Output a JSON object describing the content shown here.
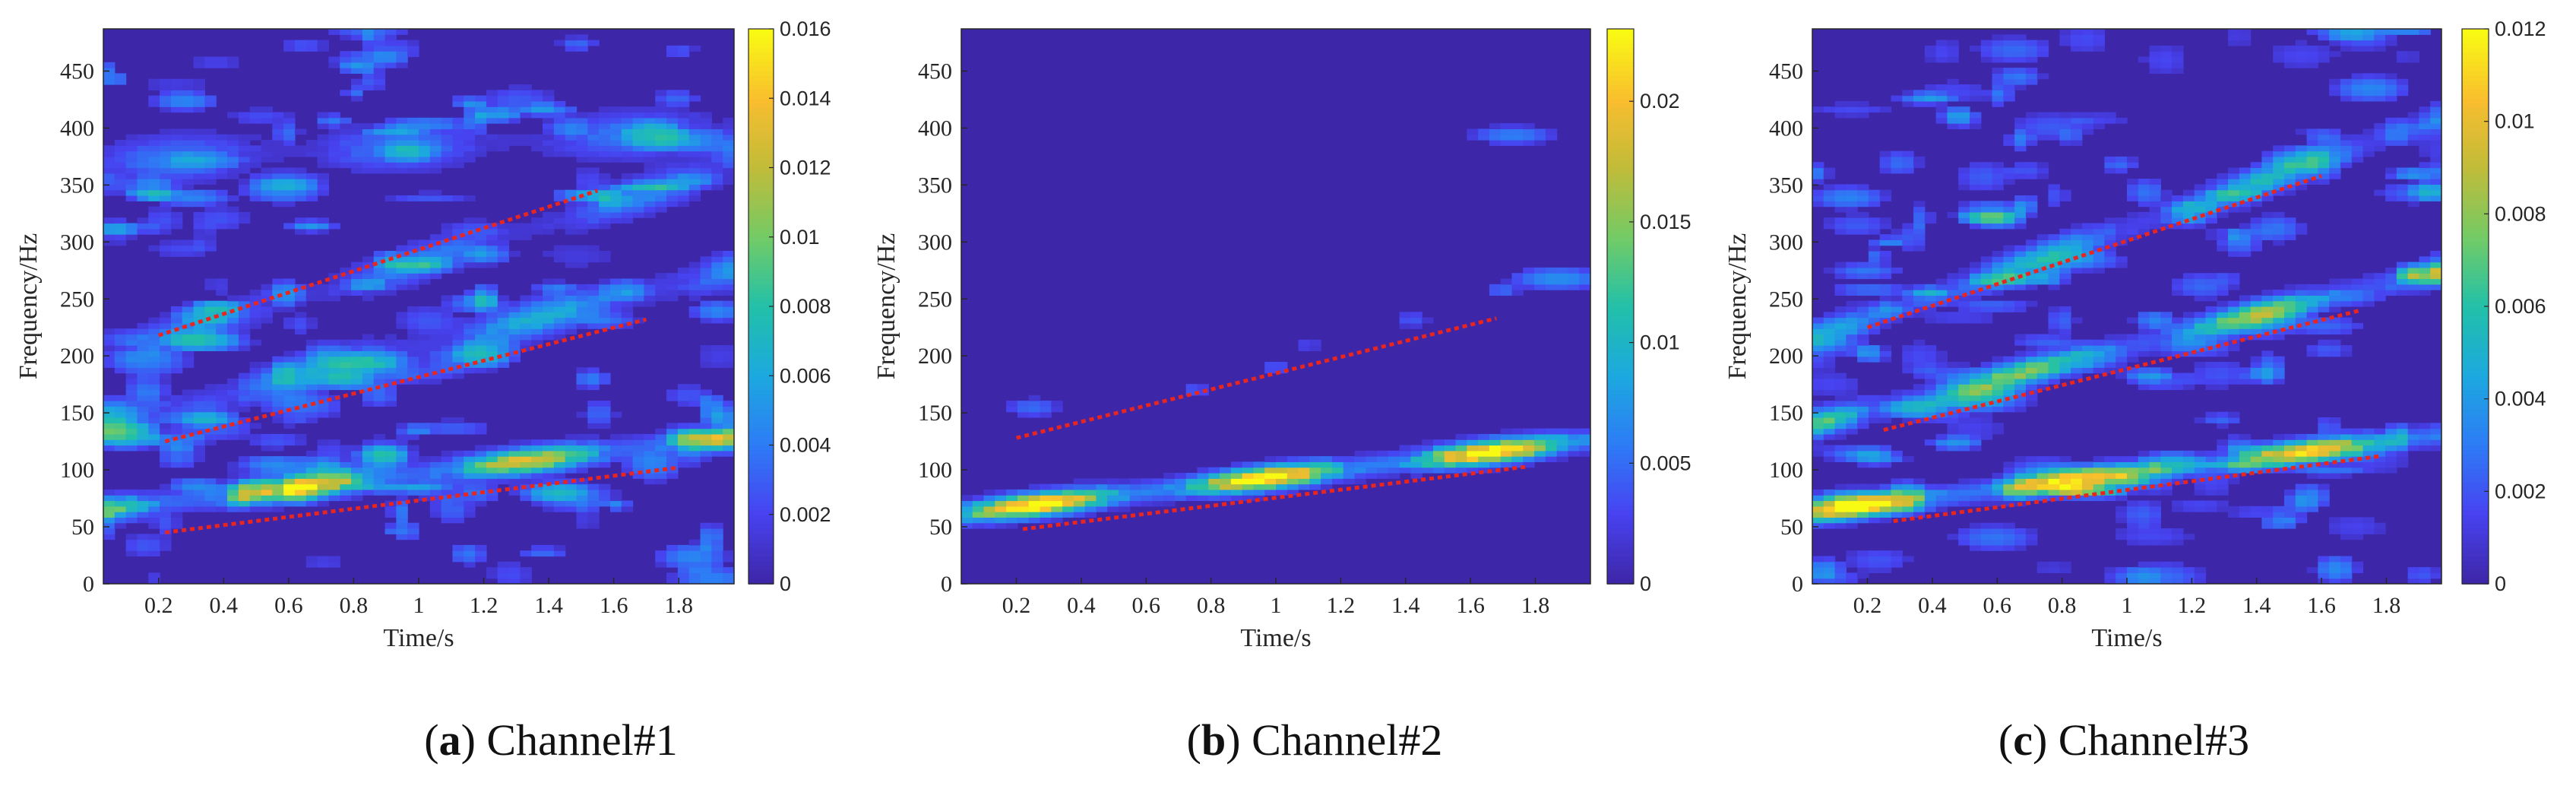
{
  "colors": {
    "background": "#3e26a8",
    "colormap": [
      "#3e26a8",
      "#4743f1",
      "#2d7cf5",
      "#1ca9df",
      "#22c0a9",
      "#72cb66",
      "#c0bc3a",
      "#f9bd2e",
      "#f9fa14"
    ],
    "trend_line": "#e8261f"
  },
  "chart_data": [
    {
      "type": "heatmap",
      "caption_letter": "a",
      "caption_text": "Channel#1",
      "xlabel": "Time/s",
      "ylabel": "Frequency/Hz",
      "xlim": [
        0.03,
        1.97
      ],
      "ylim": [
        0,
        487
      ],
      "x_ticks": [
        "0.2",
        "0.4",
        "0.6",
        "0.8",
        "1",
        "1.2",
        "1.4",
        "1.6",
        "1.8"
      ],
      "y_ticks": [
        "0",
        "50",
        "100",
        "150",
        "200",
        "250",
        "300",
        "350",
        "400",
        "450"
      ],
      "colorbar": {
        "min": 0,
        "max": 0.016,
        "ticks": [
          "0",
          "0.002",
          "0.004",
          "0.006",
          "0.008",
          "0.01",
          "0.012",
          "0.014",
          "0.016"
        ]
      },
      "ridges": [
        {
          "f0": 65,
          "slope": 33,
          "strength": 0.011,
          "width": 11
        },
        {
          "f0": 140,
          "slope": 70,
          "strength": 0.0055,
          "width": 16
        },
        {
          "f0": 200,
          "slope": 85,
          "strength": 0.004,
          "width": 16
        },
        {
          "f0": 370,
          "slope": 15,
          "strength": 0.0035,
          "width": 20
        }
      ],
      "noise_level": 0.0042,
      "trend_lines": [
        {
          "x": [
            0.22,
            1.8
          ],
          "y": [
            45,
            102
          ]
        },
        {
          "x": [
            0.22,
            1.7
          ],
          "y": [
            125,
            232
          ]
        },
        {
          "x": [
            0.2,
            1.55
          ],
          "y": [
            218,
            345
          ]
        }
      ]
    },
    {
      "type": "heatmap",
      "caption_letter": "b",
      "caption_text": "Channel#2",
      "xlabel": "Time/s",
      "ylabel": "Frequency/Hz",
      "xlim": [
        0.03,
        1.97
      ],
      "ylim": [
        0,
        487
      ],
      "x_ticks": [
        "0.2",
        "0.4",
        "0.6",
        "0.8",
        "1",
        "1.2",
        "1.4",
        "1.6",
        "1.8"
      ],
      "y_ticks": [
        "0",
        "50",
        "100",
        "150",
        "200",
        "250",
        "300",
        "350",
        "400",
        "450"
      ],
      "colorbar": {
        "min": 0,
        "max": 0.023,
        "ticks": [
          "0",
          "0.005",
          "0.01",
          "0.015",
          "0.02"
        ]
      },
      "ridges": [
        {
          "f0": 62,
          "slope": 33,
          "strength": 0.02,
          "width": 10
        }
      ],
      "noise_level": 0.0,
      "spots": [
        {
          "x": 0.25,
          "y": 155,
          "w": 0.1,
          "h": 10,
          "v": 0.005
        },
        {
          "x": 0.75,
          "y": 170,
          "w": 0.05,
          "h": 8,
          "v": 0.004
        },
        {
          "x": 1.0,
          "y": 190,
          "w": 0.05,
          "h": 8,
          "v": 0.004
        },
        {
          "x": 1.42,
          "y": 232,
          "w": 0.06,
          "h": 8,
          "v": 0.004
        },
        {
          "x": 1.7,
          "y": 258,
          "w": 0.06,
          "h": 8,
          "v": 0.005
        },
        {
          "x": 1.87,
          "y": 268,
          "w": 0.18,
          "h": 12,
          "v": 0.007
        },
        {
          "x": 1.73,
          "y": 394,
          "w": 0.16,
          "h": 10,
          "v": 0.006
        },
        {
          "x": 1.1,
          "y": 210,
          "w": 0.04,
          "h": 8,
          "v": 0.003
        }
      ],
      "trend_lines": [
        {
          "x": [
            0.22,
            1.78
          ],
          "y": [
            48,
            103
          ]
        },
        {
          "x": [
            0.2,
            1.68
          ],
          "y": [
            128,
            233
          ]
        }
      ]
    },
    {
      "type": "heatmap",
      "caption_letter": "c",
      "caption_text": "Channel#3",
      "xlabel": "Time/s",
      "ylabel": "Frequency/Hz",
      "xlim": [
        0.03,
        1.97
      ],
      "ylim": [
        0,
        487
      ],
      "x_ticks": [
        "0.2",
        "0.4",
        "0.6",
        "0.8",
        "1",
        "1.2",
        "1.4",
        "1.6",
        "1.8"
      ],
      "y_ticks": [
        "0",
        "50",
        "100",
        "150",
        "200",
        "250",
        "300",
        "350",
        "400",
        "450"
      ],
      "colorbar": {
        "min": 0,
        "max": 0.012,
        "ticks": [
          "0",
          "0.002",
          "0.004",
          "0.006",
          "0.008",
          "0.01",
          "0.012"
        ]
      },
      "ridges": [
        {
          "f0": 63,
          "slope": 35,
          "strength": 0.0095,
          "width": 10
        },
        {
          "f0": 140,
          "slope": 70,
          "strength": 0.0065,
          "width": 12
        },
        {
          "f0": 215,
          "slope": 100,
          "strength": 0.0045,
          "width": 14
        }
      ],
      "noise_level": 0.0032,
      "trend_lines": [
        {
          "x": [
            0.28,
            1.78
          ],
          "y": [
            55,
            112
          ]
        },
        {
          "x": [
            0.25,
            1.72
          ],
          "y": [
            135,
            240
          ]
        },
        {
          "x": [
            0.2,
            1.6
          ],
          "y": [
            225,
            358
          ]
        }
      ]
    }
  ]
}
